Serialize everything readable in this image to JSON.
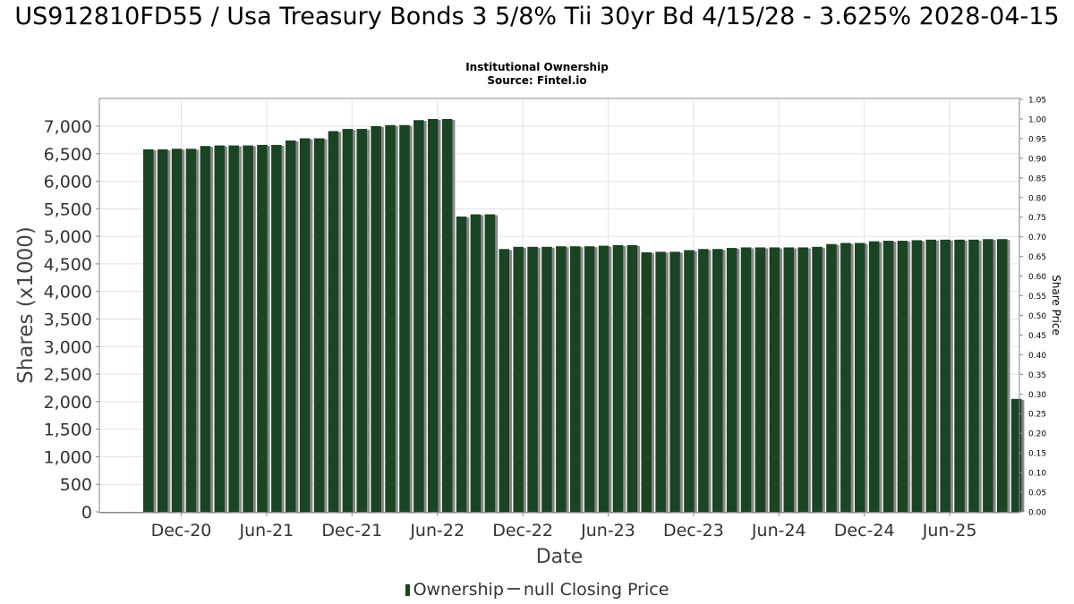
{
  "title": "US912810FD55 / Usa Treasury Bonds 3 5/8% Tii 30yr Bd 4/15/28 - 3.625% 2028-04-15",
  "subtitle_lines": [
    "Institutional Ownership",
    "Source: Fintel.io"
  ],
  "legend": {
    "ownership_label": "Ownership",
    "price_label": "null Closing Price"
  },
  "colors": {
    "bar": "#1a4424",
    "bar_shadow": "#888888",
    "grid": "#e2e2e2",
    "plot_border": "#888888"
  },
  "chart_data": {
    "type": "bar",
    "title": "US912810FD55 / Usa Treasury Bonds 3 5/8% Tii 30yr Bd 4/15/28 - 3.625% 2028-04-15",
    "subtitle": "Institutional Ownership",
    "xlabel": "Date",
    "ylabel": "Shares (x1000)",
    "y2label": "Share Price",
    "ylim": [
      0,
      7500
    ],
    "y2lim": [
      0,
      1.05
    ],
    "yticks": [
      0,
      500,
      1000,
      1500,
      2000,
      2500,
      3000,
      3500,
      4000,
      4500,
      5000,
      5500,
      6000,
      6500,
      7000
    ],
    "ytick_labels": [
      "0",
      "500",
      "1,000",
      "1,500",
      "2,000",
      "2,500",
      "3,000",
      "3,500",
      "4,000",
      "4,500",
      "5,000",
      "5,500",
      "6,000",
      "6,500",
      "7,000"
    ],
    "y2ticks": [
      0.0,
      0.05,
      0.1,
      0.15,
      0.2,
      0.25,
      0.3,
      0.35,
      0.4,
      0.45,
      0.5,
      0.55,
      0.6,
      0.65,
      0.7,
      0.75,
      0.8,
      0.85,
      0.9,
      0.95,
      1.0,
      1.05
    ],
    "y2tick_labels": [
      "0.00",
      "0.05",
      "0.10",
      "0.15",
      "0.20",
      "0.25",
      "0.30",
      "0.35",
      "0.40",
      "0.45",
      "0.50",
      "0.55",
      "0.60",
      "0.65",
      "0.70",
      "0.75",
      "0.80",
      "0.85",
      "0.90",
      "0.95",
      "1.00",
      "1.05"
    ],
    "xtick_labels": [
      "Dec-20",
      "Jun-21",
      "Dec-21",
      "Jun-22",
      "Dec-22",
      "Jun-23",
      "Dec-23",
      "Jun-24",
      "Dec-24",
      "Jun-25"
    ],
    "xtick_bar_index": [
      2.5,
      8.5,
      14.5,
      20.5,
      26.5,
      32.5,
      38.5,
      44.5,
      50.5,
      56.5
    ],
    "grid": true,
    "legend_position": "bottom",
    "series": [
      {
        "name": "Ownership",
        "values": [
          6580,
          6580,
          6590,
          6590,
          6640,
          6650,
          6650,
          6650,
          6660,
          6660,
          6740,
          6780,
          6780,
          6910,
          6950,
          6950,
          7000,
          7020,
          7020,
          7110,
          7130,
          7130,
          5360,
          5400,
          5400,
          4770,
          4810,
          4810,
          4810,
          4820,
          4820,
          4820,
          4830,
          4840,
          4840,
          4710,
          4720,
          4720,
          4750,
          4770,
          4770,
          4790,
          4800,
          4800,
          4800,
          4800,
          4800,
          4810,
          4860,
          4880,
          4880,
          4910,
          4920,
          4920,
          4930,
          4940,
          4940,
          4940,
          4940,
          4950,
          4950,
          2050
        ]
      }
    ]
  }
}
